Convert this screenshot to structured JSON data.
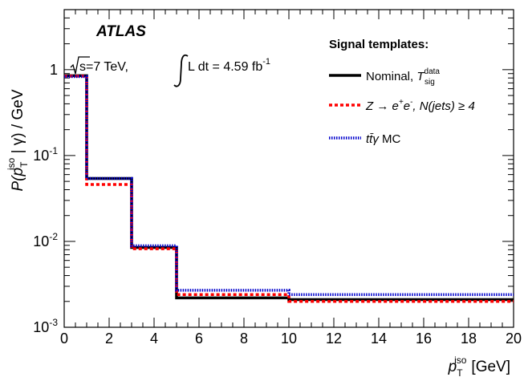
{
  "chart_data": {
    "type": "line",
    "title": "",
    "xlabel": "p_T^iso [GeV]",
    "xlabel_main": "p",
    "xlabel_sub": "T",
    "xlabel_sup": "iso",
    "xlabel_unit": "[GeV]",
    "ylabel": "P(p_T^iso | γ) / GeV",
    "ylabel_parts": {
      "p1": "P(",
      "p2": "p",
      "sub": "T",
      "sup": "iso",
      "p3": " | γ) / GeV"
    },
    "xlim": [
      0,
      20
    ],
    "ylim": [
      0.001,
      5
    ],
    "yscale": "log",
    "grid": false,
    "xticks": [
      0,
      2,
      4,
      6,
      8,
      10,
      12,
      14,
      16,
      18,
      20
    ],
    "yticks": [
      {
        "value": 0.001,
        "base": "10",
        "exp": "-3"
      },
      {
        "value": 0.01,
        "base": "10",
        "exp": "-2"
      },
      {
        "value": 0.1,
        "base": "10",
        "exp": "-1"
      },
      {
        "value": 1,
        "base": "1",
        "exp": ""
      }
    ],
    "bin_edges": [
      0,
      1,
      3,
      5,
      10,
      20
    ],
    "series": [
      {
        "name": "Nominal, T_sig^data",
        "color": "#000000",
        "values": [
          0.85,
          0.054,
          0.0085,
          0.0022,
          0.0021
        ]
      },
      {
        "name": "Z→e+e-, N(jets) ≥ 4",
        "color": "#ff0000",
        "values": [
          0.84,
          0.046,
          0.0082,
          0.0024,
          0.002
        ]
      },
      {
        "name": "ttγ MC",
        "color": "#0000cc",
        "values": [
          0.83,
          0.054,
          0.0089,
          0.0027,
          0.0024
        ]
      }
    ],
    "legend_placement": "top-right"
  },
  "annotations": {
    "atlas_label": "ATLAS",
    "sqrt_s": "s=7 TeV,",
    "lumi": "L dt = 4.59 fb",
    "lumi_exp": "-1"
  },
  "legend": {
    "title": "Signal templates:",
    "items": [
      {
        "main": "Nominal, ",
        "var": "T",
        "sup": "data",
        "sub": "sig"
      },
      {
        "main": "Z → e",
        "sup1": "+",
        "mid": "e",
        "sup2": "-",
        "rest": ", N(jets) ≥ 4"
      },
      {
        "main": "tt̄γ",
        "rest": " MC"
      }
    ]
  }
}
